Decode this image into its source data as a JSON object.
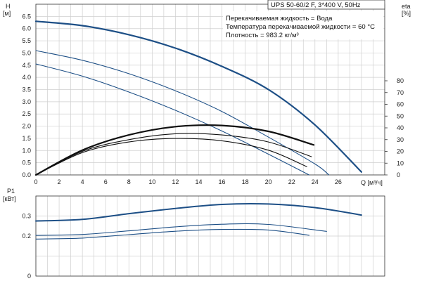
{
  "header": {
    "model": "UPS 50-60/2 F, 3*400 V, 50Hz",
    "lines": [
      "Перекачиваемая жидкость = Вода",
      "Температура перекачиваемой жидкости = 60 °C",
      "Плотность = 983.2 кг/м³"
    ]
  },
  "chart_data": [
    {
      "type": "line",
      "axes": {
        "x": {
          "label": "Q [м³/ч]",
          "ticks": [
            0,
            2,
            4,
            6,
            8,
            10,
            12,
            14,
            16,
            18,
            20,
            22,
            24,
            26
          ],
          "range": [
            0,
            30
          ]
        },
        "y_left": {
          "label_top": "H",
          "label_unit": "[м]",
          "ticks": [
            0.0,
            0.5,
            1.0,
            1.5,
            2.0,
            2.5,
            3.0,
            3.5,
            4.0,
            4.5,
            5.0,
            5.5,
            6.0,
            6.5
          ],
          "range": [
            0,
            7.0
          ]
        },
        "y_right": {
          "label_top": "eta",
          "label_unit": "[%]",
          "ticks": [
            0,
            10,
            20,
            30,
            40,
            50,
            60,
            70,
            80
          ],
          "range": [
            0,
            80
          ]
        }
      },
      "grid": true,
      "head_curves": [
        {
          "x": [
            0,
            4,
            8,
            12,
            16,
            20,
            24,
            28
          ],
          "y": [
            6.3,
            6.12,
            5.75,
            5.2,
            4.45,
            3.5,
            2.05,
            0.12
          ]
        },
        {
          "x": [
            0,
            4,
            8,
            12,
            16,
            20,
            24,
            25.2
          ],
          "y": [
            5.1,
            4.7,
            4.15,
            3.45,
            2.6,
            1.55,
            0.45,
            0.0
          ]
        },
        {
          "x": [
            0,
            4,
            8,
            12,
            16,
            20,
            23.5
          ],
          "y": [
            4.55,
            4.05,
            3.4,
            2.65,
            1.8,
            0.85,
            0.0
          ]
        }
      ],
      "efficiency_curves": [
        {
          "x": [
            0,
            4,
            8,
            12,
            16,
            20,
            23.9
          ],
          "y": [
            0,
            21,
            34,
            41,
            42,
            37,
            25.5
          ]
        },
        {
          "x": [
            0,
            4,
            8,
            12,
            16,
            20,
            23.7
          ],
          "y": [
            0,
            20,
            30,
            35,
            34,
            28,
            15.5
          ]
        },
        {
          "x": [
            0,
            4,
            8,
            12,
            16,
            20,
            23.3
          ],
          "y": [
            0,
            19,
            28,
            31,
            29,
            21,
            7.0
          ]
        }
      ]
    },
    {
      "type": "line",
      "axes": {
        "x": {
          "range": [
            0,
            30
          ]
        },
        "y_left": {
          "label_top": "P1",
          "label_unit": "[кВт]",
          "ticks": [
            0,
            0.1,
            0.2,
            0.3
          ],
          "tick_labels": [
            "0",
            "",
            "0.2",
            "0.3"
          ],
          "range": [
            0,
            0.4
          ]
        }
      },
      "grid": true,
      "power_curves": [
        {
          "x": [
            0,
            4,
            8,
            12,
            16,
            20,
            24,
            28
          ],
          "y": [
            0.275,
            0.283,
            0.312,
            0.338,
            0.358,
            0.36,
            0.342,
            0.305
          ]
        },
        {
          "x": [
            0,
            4,
            8,
            12,
            16,
            20,
            25
          ],
          "y": [
            0.203,
            0.208,
            0.226,
            0.246,
            0.259,
            0.258,
            0.223
          ]
        },
        {
          "x": [
            0,
            4,
            8,
            12,
            16,
            20,
            23.5
          ],
          "y": [
            0.185,
            0.19,
            0.207,
            0.224,
            0.233,
            0.23,
            0.204
          ]
        }
      ]
    }
  ]
}
